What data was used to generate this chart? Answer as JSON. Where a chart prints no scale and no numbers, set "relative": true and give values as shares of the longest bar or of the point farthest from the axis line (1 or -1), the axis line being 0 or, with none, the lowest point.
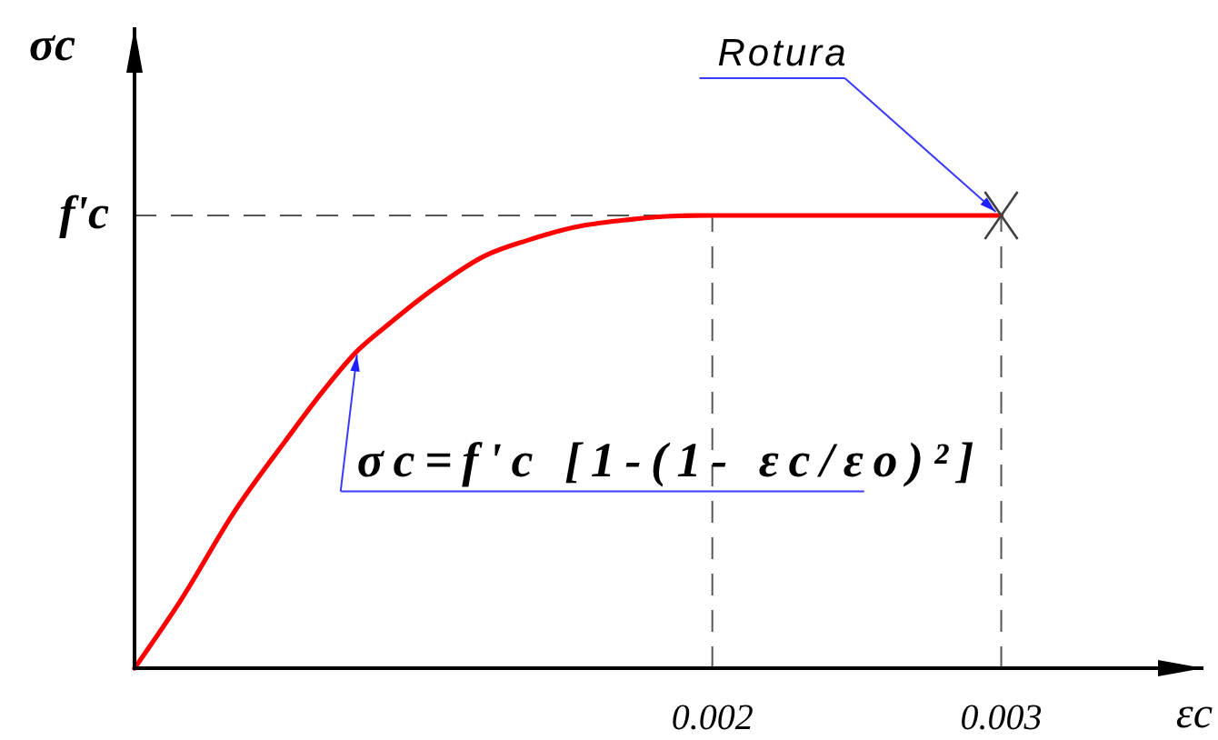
{
  "chart_data": {
    "type": "line",
    "relative": true,
    "xlabel": "εc",
    "ylabel": "σc",
    "xlim": [
      0,
      0.0037
    ],
    "xticks": [
      0.002,
      0.003
    ],
    "series": [
      {
        "color": "#ff0000",
        "x": [
          0,
          0.00016,
          0.00035,
          0.00052,
          0.00065,
          0.00077,
          0.00088,
          0.00104,
          0.00121,
          0.00136,
          0.00153,
          0.0017,
          0.00184,
          0.002,
          0.003
        ],
        "values": [
          0,
          0.15,
          0.35,
          0.5,
          0.61,
          0.7,
          0.76,
          0.84,
          0.91,
          0.945,
          0.975,
          0.99,
          0.998,
          1,
          1
        ]
      },
      {
        "type": "scatter",
        "marker": "cross",
        "color": "#404040",
        "x": [
          0.003
        ],
        "values": [
          1
        ]
      }
    ],
    "ref_lines": [
      {
        "axis": "y",
        "value": 1,
        "label": "f'c"
      },
      {
        "axis": "x",
        "value": 0.002
      },
      {
        "axis": "x",
        "value": 0.003
      }
    ],
    "annotations": [
      {
        "text": "Rotura",
        "x": 0.003,
        "y": 1
      },
      {
        "text": "σc=f'c [1-(1- εc/εo)²]",
        "x": 0.00077,
        "y": 0.7
      }
    ]
  }
}
